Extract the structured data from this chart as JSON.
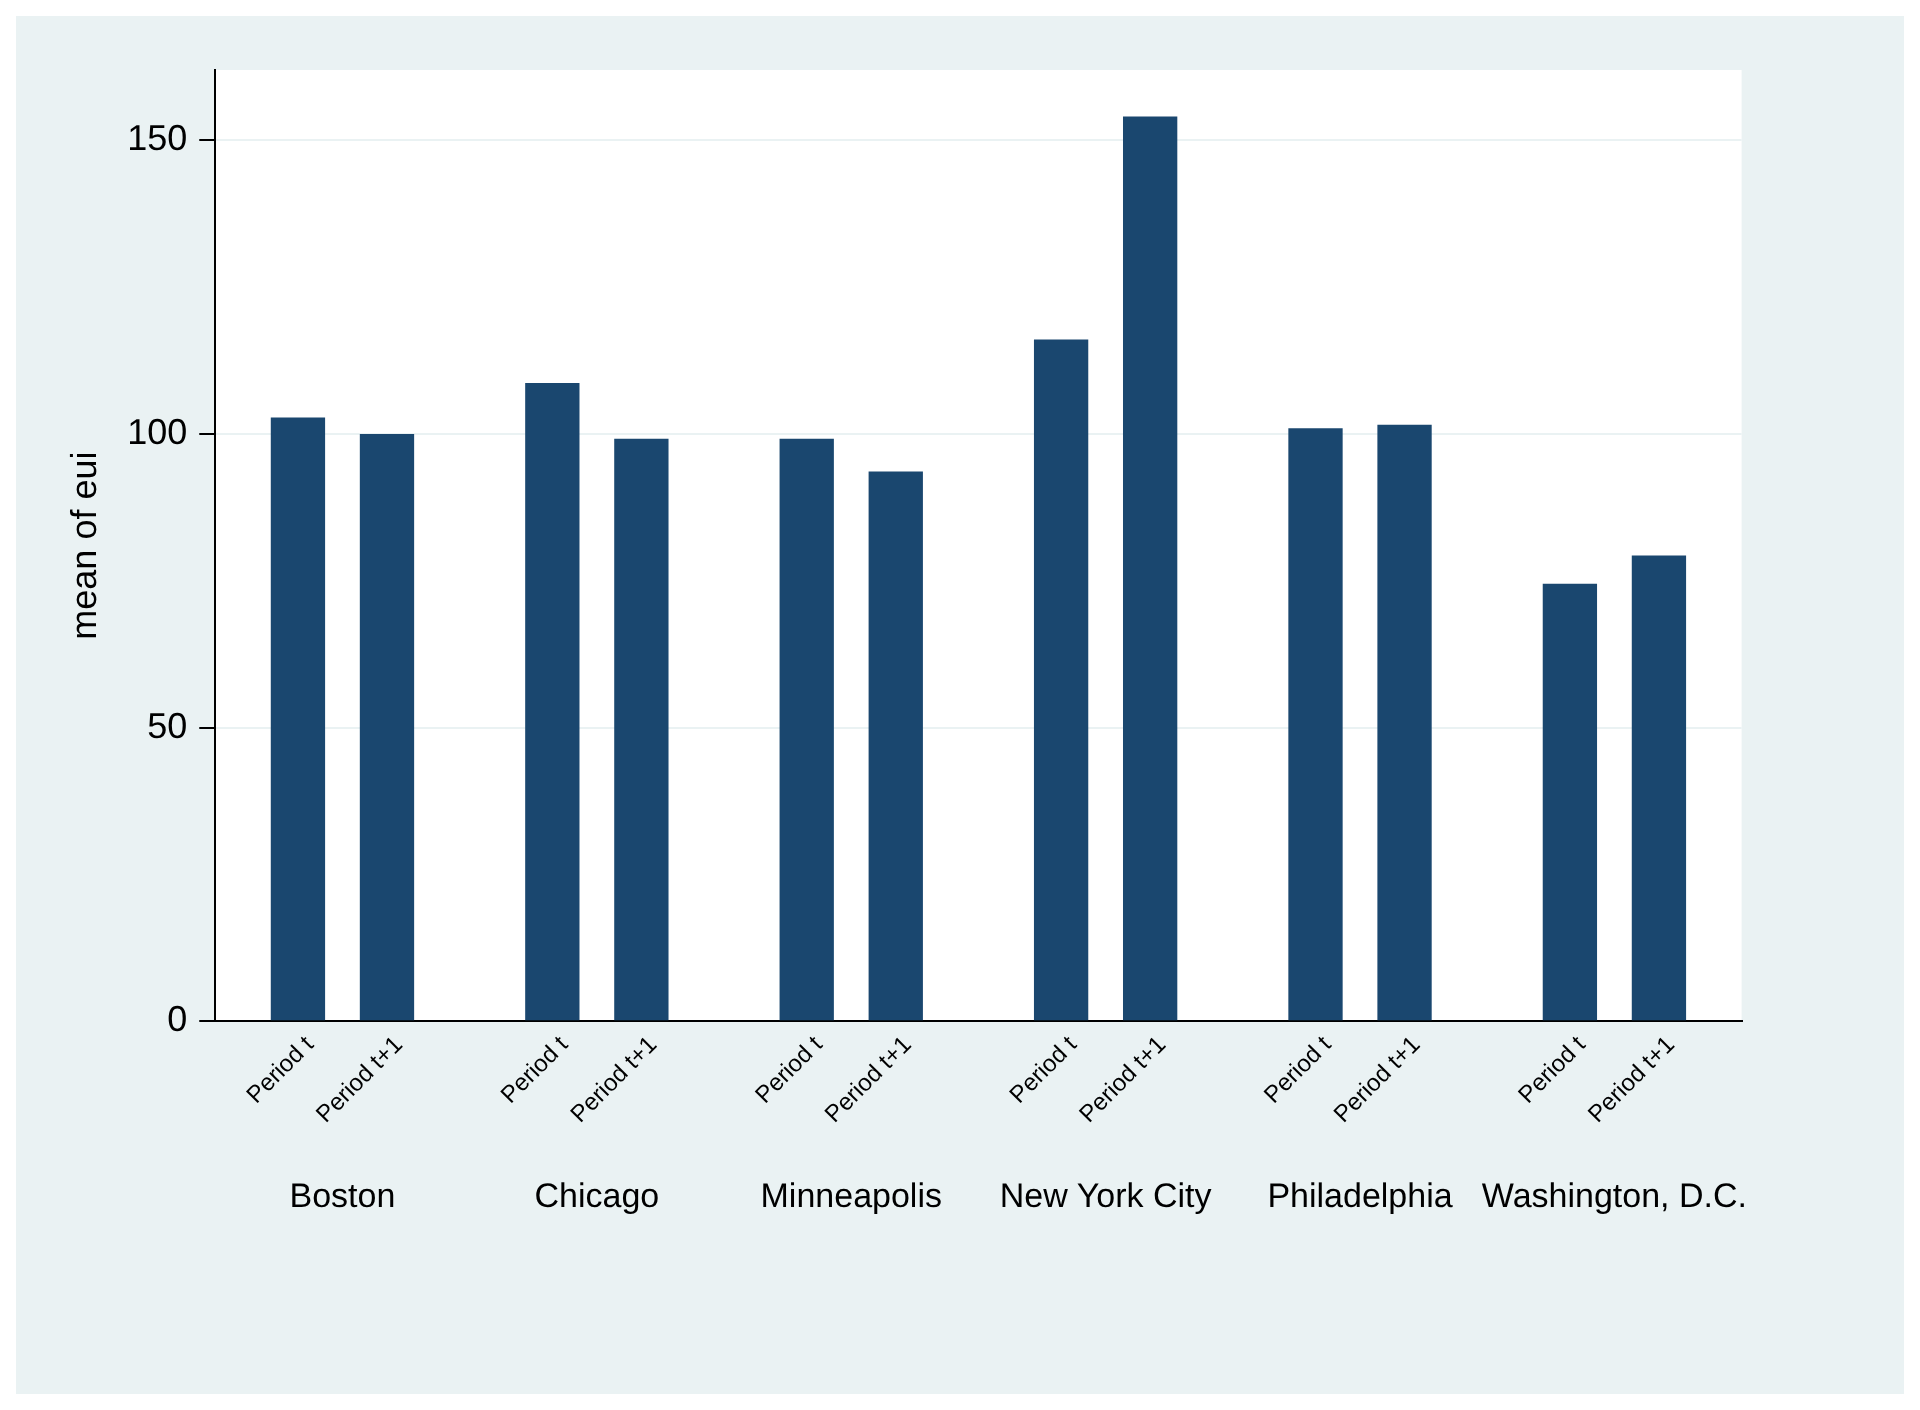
{
  "chart_data": {
    "type": "bar",
    "ylabel": "mean of eui",
    "categories": [
      "Boston",
      "Chicago",
      "Minneapolis",
      "New York City",
      "Philadelphia",
      "Washington, D.C."
    ],
    "series": [
      {
        "name": "Period t",
        "color": "#1a476f",
        "values": [
          102.8,
          108.7,
          99.2,
          116.1,
          101,
          74.5
        ]
      },
      {
        "name": "Period t+1",
        "color": "#1a476f",
        "values": [
          100,
          99.2,
          93.6,
          154.1,
          101.6,
          79.3
        ]
      }
    ],
    "ylim": [
      0,
      162
    ],
    "yticks": [
      0,
      50,
      100,
      150
    ],
    "grid": "y",
    "legend": false
  }
}
